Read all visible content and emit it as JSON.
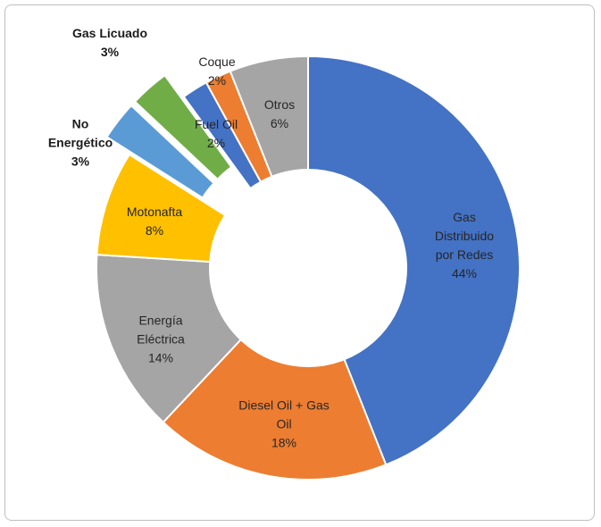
{
  "chart_data": {
    "type": "pie",
    "donut": true,
    "categories": [
      "Gas Distribuido por Redes",
      "Diesel Oil + Gas Oil",
      "Energía Eléctrica",
      "Motonafta",
      "No Energético",
      "Gas Licuado",
      "Fuel Oil",
      "Coque",
      "Otros"
    ],
    "values": [
      44,
      18,
      14,
      8,
      3,
      3,
      2,
      2,
      6
    ],
    "value_labels": [
      "44%",
      "18%",
      "14%",
      "8%",
      "3%",
      "3%",
      "2%",
      "2%",
      "6%"
    ],
    "colors": [
      "#4472c4",
      "#ed7d31",
      "#a5a5a5",
      "#ffc000",
      "#5b9bd5",
      "#70ad47",
      "#4472c4",
      "#ed7d31",
      "#a5a5a5"
    ],
    "explode": [
      false,
      false,
      false,
      false,
      true,
      true,
      false,
      false,
      false
    ]
  }
}
